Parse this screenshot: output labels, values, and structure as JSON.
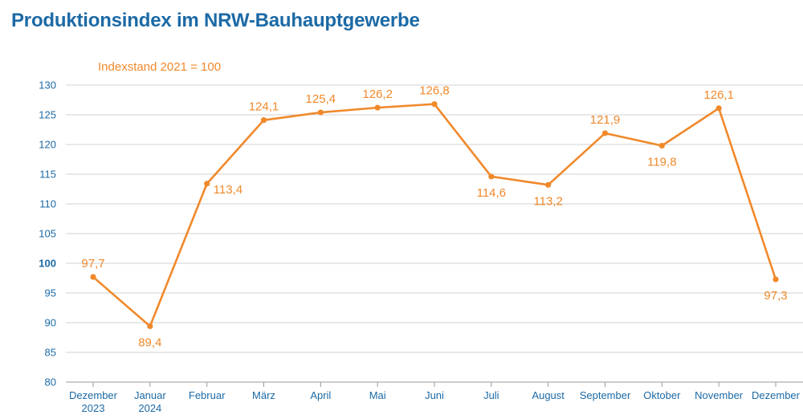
{
  "title": "Produktionsindex im NRW-Bauhauptgewerbe",
  "chart_data": {
    "type": "line",
    "title": "Produktionsindex im NRW-Bauhauptgewerbe",
    "annotation": "Indexstand 2021 = 100",
    "categories": [
      [
        "Dezember",
        "2023"
      ],
      [
        "Januar",
        "2024"
      ],
      [
        "Februar"
      ],
      [
        "März"
      ],
      [
        "April"
      ],
      [
        "Mai"
      ],
      [
        "Juni"
      ],
      [
        "Juli"
      ],
      [
        "August"
      ],
      [
        "September"
      ],
      [
        "Oktober"
      ],
      [
        "November"
      ],
      [
        "Dezember"
      ]
    ],
    "values": [
      97.7,
      89.4,
      113.4,
      124.1,
      125.4,
      126.2,
      126.8,
      114.6,
      113.2,
      121.9,
      119.8,
      126.1,
      97.3
    ],
    "data_labels": [
      "97,7",
      "89,4",
      "113,4",
      "124,1",
      "125,4",
      "126,2",
      "126,8",
      "114,6",
      "113,2",
      "121,9",
      "119,8",
      "126,1",
      "97,3"
    ],
    "label_position": [
      "above",
      "below",
      "right",
      "above",
      "above",
      "above",
      "above",
      "below",
      "below",
      "above",
      "below",
      "above",
      "below"
    ],
    "ylim": [
      80,
      130
    ],
    "yticks": [
      80,
      85,
      90,
      95,
      100,
      105,
      110,
      115,
      120,
      125,
      130
    ],
    "ytick_labels": [
      "80",
      "85",
      "90",
      "95",
      "100",
      "105",
      "110",
      "115",
      "120",
      "125",
      "130"
    ],
    "reference_tick": 100,
    "grid": true,
    "colors": {
      "line": "#f0892b",
      "axis_text": "#1c6aa6",
      "grid": "#d0d0d0",
      "title": "#1c6aa6"
    }
  }
}
